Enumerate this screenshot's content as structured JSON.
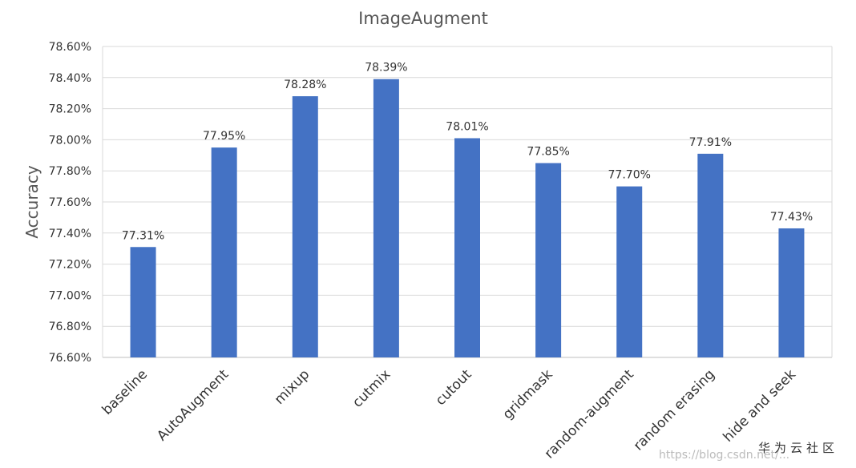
{
  "chart_data": {
    "type": "bar",
    "title": "ImageAugment",
    "xlabel": "",
    "ylabel": "Accuracy",
    "categories": [
      "baseline",
      "AutoAugment",
      "mixup",
      "cutmix",
      "cutout",
      "gridmask",
      "random-augment",
      "random erasing",
      "hide and seek"
    ],
    "values": [
      77.31,
      77.95,
      78.28,
      78.39,
      78.01,
      77.85,
      77.7,
      77.91,
      77.43
    ],
    "data_labels": [
      "77.31%",
      "77.95%",
      "78.28%",
      "78.39%",
      "78.01%",
      "77.85%",
      "77.70%",
      "77.91%",
      "77.43%"
    ],
    "ylim": [
      76.6,
      78.6
    ],
    "yticks": [
      76.6,
      76.8,
      77.0,
      77.2,
      77.4,
      77.6,
      77.8,
      78.0,
      78.2,
      78.4,
      78.6
    ],
    "ytick_labels": [
      "76.60%",
      "76.80%",
      "77.00%",
      "77.20%",
      "77.40%",
      "77.60%",
      "77.80%",
      "78.00%",
      "78.20%",
      "78.40%",
      "78.60%"
    ],
    "grid": true,
    "legend": "none",
    "bar_color": "#4472C4",
    "grid_color": "#d9d9d9"
  },
  "watermark": {
    "brand": "华为云社区",
    "url": "https://blog.csdn.net/..."
  }
}
